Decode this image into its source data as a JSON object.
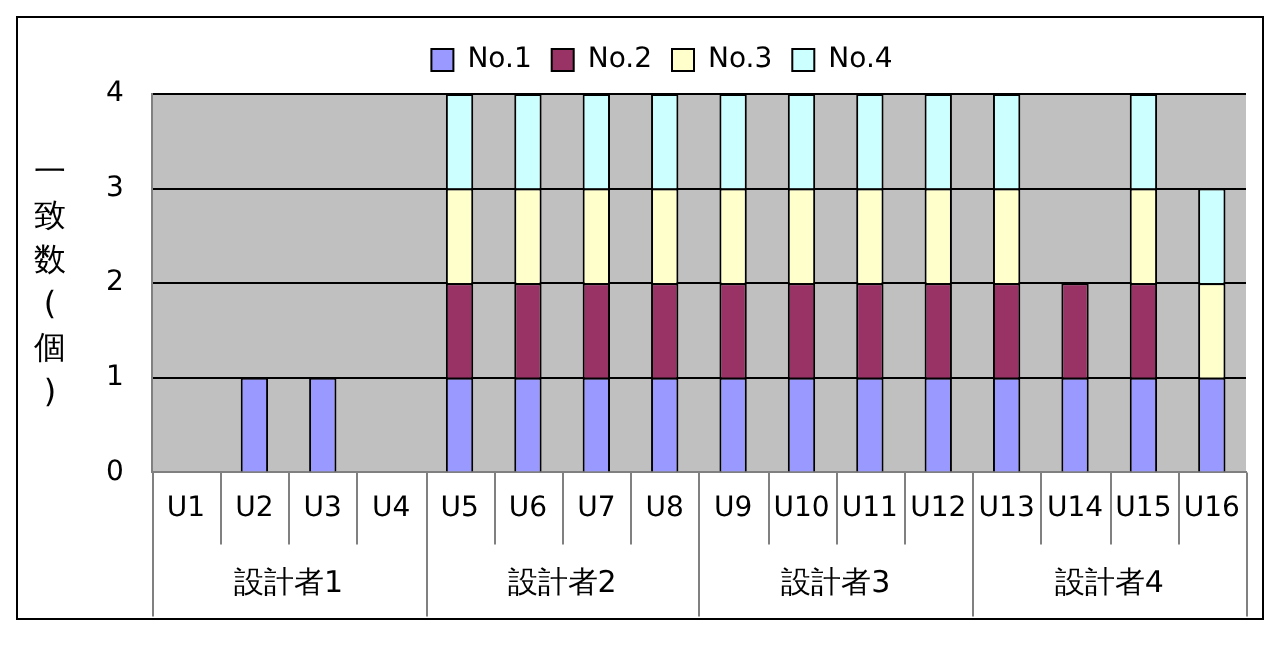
{
  "chart_data": {
    "type": "bar",
    "stacked": true,
    "ylabel": "一致数(個)",
    "categories": [
      "U1",
      "U2",
      "U3",
      "U4",
      "U5",
      "U6",
      "U7",
      "U8",
      "U9",
      "U10",
      "U11",
      "U12",
      "U13",
      "U14",
      "U15",
      "U16"
    ],
    "series": [
      {
        "name": "No.1",
        "color": "#9999ff",
        "values": [
          null,
          1,
          1,
          null,
          1,
          1,
          1,
          1,
          1,
          1,
          1,
          1,
          1,
          1,
          1,
          1
        ]
      },
      {
        "name": "No.2",
        "color": "#993366",
        "values": [
          null,
          null,
          null,
          null,
          1,
          1,
          1,
          1,
          1,
          1,
          1,
          1,
          1,
          1,
          1,
          null
        ]
      },
      {
        "name": "No.3",
        "color": "#ffffcc",
        "values": [
          null,
          null,
          null,
          null,
          1,
          1,
          1,
          1,
          1,
          1,
          1,
          1,
          1,
          null,
          1,
          1
        ]
      },
      {
        "name": "No.4",
        "color": "#ccffff",
        "values": [
          null,
          null,
          null,
          null,
          1,
          1,
          1,
          1,
          1,
          1,
          1,
          1,
          1,
          null,
          1,
          1
        ]
      }
    ],
    "annotations": [
      "設計者1",
      "設計者2",
      "設計者3",
      "設計者4"
    ],
    "ylim": [
      0,
      4
    ],
    "yticks": [
      0,
      1,
      2,
      3,
      4
    ],
    "grid": "y",
    "legend": "top"
  }
}
